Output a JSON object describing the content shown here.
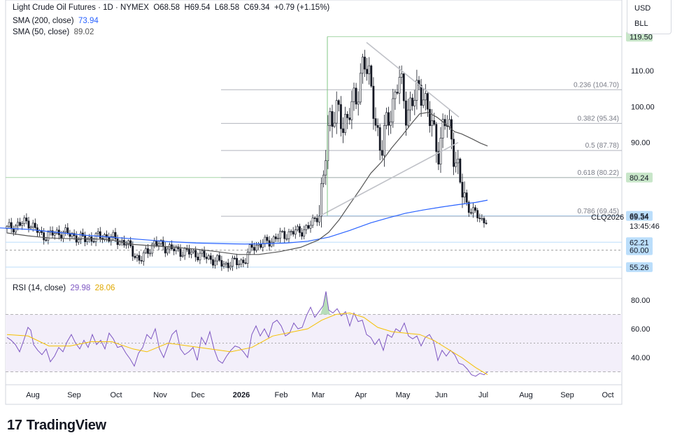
{
  "header": {
    "symbol": "Light Crude Oil Futures · 1D · NYMEX",
    "open": "O68.58",
    "high": "H69.54",
    "low": "L68.58",
    "close": "C69.34",
    "change": "+0.79 (+1.15%)",
    "sma200_label": "SMA (200, close)",
    "sma200_value": "73.94",
    "sma50_label": "SMA (50, close)",
    "sma50_value": "89.02"
  },
  "unit_selector": {
    "currency": "USD",
    "unit": "BLL"
  },
  "brand": {
    "name": "TradingView"
  },
  "colors": {
    "sma200": "#2962ff",
    "sma50": "#555555",
    "rsi": "#7e57c2",
    "rsi_ma": "#f5c000",
    "green_line": "#a5d6a7",
    "candle": "#131722"
  },
  "chart_data": [
    {
      "type": "candlestick",
      "title": "Light Crude Oil Futures · 1D · NYMEX",
      "x_ticks": [
        "Aug",
        "Sep",
        "Oct",
        "Nov",
        "Dec",
        "2026",
        "Feb",
        "Mar",
        "Apr",
        "May",
        "Jun",
        "Jul",
        "Aug",
        "Sep",
        "Oct"
      ],
      "y_ticks": [
        "110.00",
        "100.00",
        "90.00"
      ],
      "ylim": [
        52,
        122
      ],
      "price_labels": [
        {
          "text": "119.50",
          "value": 119.5,
          "style": "green"
        },
        {
          "text": "80.24",
          "value": 80.24,
          "style": "green"
        },
        {
          "text": "69.54",
          "value": 69.54,
          "style": "blue"
        },
        {
          "text": "62.21",
          "value": 62.21,
          "style": "blue"
        },
        {
          "text": "60.00",
          "value": 60.0,
          "style": "blue"
        },
        {
          "text": "55.26",
          "value": 55.26,
          "style": "blue"
        }
      ],
      "current_price": {
        "symbol": "CLQ2026",
        "price": "69.34",
        "countdown": "13:45:46"
      },
      "fibonacci": [
        {
          "label": "0.236 (104.70)",
          "value": 104.7
        },
        {
          "label": "0.382 (95.34)",
          "value": 95.34
        },
        {
          "label": "0.5 (87.78)",
          "value": 87.78
        },
        {
          "label": "0.618 (80.22)",
          "value": 80.22
        },
        {
          "label": "0.786 (69.45)",
          "value": 69.45
        }
      ],
      "series": [
        {
          "name": "SMA (200, close)",
          "points": [
            [
              0,
              66.2
            ],
            [
              40,
              65.8
            ],
            [
              80,
              65.0
            ],
            [
              120,
              64.2
            ],
            [
              160,
              63.6
            ],
            [
              200,
              63.0
            ],
            [
              240,
              62.4
            ],
            [
              280,
              62.0
            ],
            [
              320,
              61.8
            ],
            [
              350,
              61.7
            ],
            [
              380,
              61.8
            ],
            [
              410,
              62.0
            ],
            [
              440,
              62.5
            ],
            [
              470,
              63.6
            ],
            [
              500,
              65.5
            ],
            [
              530,
              67.6
            ],
            [
              555,
              69.0
            ],
            [
              580,
              70.3
            ],
            [
              605,
              71.2
            ],
            [
              630,
              72.0
            ],
            [
              655,
              72.7
            ],
            [
              680,
              73.3
            ],
            [
              697,
              73.94
            ]
          ]
        },
        {
          "name": "SMA (50, close)",
          "points": [
            [
              10,
              64.8
            ],
            [
              40,
              64.0
            ],
            [
              70,
              63.4
            ],
            [
              100,
              63.2
            ],
            [
              130,
              63.2
            ],
            [
              160,
              62.8
            ],
            [
              190,
              61.6
            ],
            [
              220,
              61.2
            ],
            [
              250,
              60.8
            ],
            [
              280,
              60.3
            ],
            [
              310,
              59.6
            ],
            [
              340,
              58.8
            ],
            [
              370,
              58.8
            ],
            [
              400,
              59.6
            ],
            [
              430,
              60.8
            ],
            [
              455,
              62.8
            ],
            [
              470,
              65.0
            ],
            [
              485,
              68.5
            ],
            [
              500,
              72.8
            ],
            [
              515,
              77.0
            ],
            [
              530,
              81.4
            ],
            [
              545,
              84.5
            ],
            [
              560,
              88.5
            ],
            [
              575,
              92.0
            ],
            [
              590,
              95.7
            ],
            [
              600,
              98.0
            ],
            [
              612,
              98.4
            ],
            [
              625,
              97.0
            ],
            [
              638,
              95.0
            ],
            [
              650,
              93.0
            ],
            [
              660,
              92.4
            ],
            [
              675,
              91.0
            ],
            [
              687,
              89.8
            ],
            [
              697,
              89.02
            ]
          ]
        }
      ],
      "drawings": [
        {
          "type": "trendline",
          "from": [
            458,
            69.6
          ],
          "to": [
            655,
            90.0
          ]
        },
        {
          "type": "trendline",
          "from": [
            524,
            117.9
          ],
          "to": [
            656,
            97.1
          ]
        },
        {
          "type": "vertical",
          "x": 468,
          "from": 119.5,
          "to": 69.6
        }
      ]
    },
    {
      "type": "line",
      "title": "RSI (14, close)",
      "rsi_value": "29.98",
      "rsi_ma_value": "28.06",
      "y_ticks": [
        "80.00",
        "60.00",
        "40.00"
      ],
      "ylim": [
        20,
        88
      ],
      "bands": [
        70,
        50,
        30
      ],
      "series": [
        {
          "name": "RSI (14, close)",
          "points": [
            [
              10,
              54
            ],
            [
              16,
              52
            ],
            [
              22,
              49
            ],
            [
              28,
              44
            ],
            [
              34,
              52
            ],
            [
              40,
              61
            ],
            [
              44,
              59
            ],
            [
              48,
              49
            ],
            [
              54,
              45
            ],
            [
              60,
              42
            ],
            [
              66,
              46
            ],
            [
              72,
              37
            ],
            [
              78,
              41
            ],
            [
              84,
              47
            ],
            [
              90,
              44
            ],
            [
              96,
              51
            ],
            [
              102,
              56
            ],
            [
              108,
              50
            ],
            [
              114,
              46
            ],
            [
              120,
              52
            ],
            [
              126,
              47
            ],
            [
              132,
              56
            ],
            [
              138,
              49
            ],
            [
              144,
              52
            ],
            [
              150,
              46
            ],
            [
              156,
              57
            ],
            [
              162,
              53
            ],
            [
              168,
              47
            ],
            [
              174,
              48
            ],
            [
              180,
              43
            ],
            [
              186,
              39
            ],
            [
              192,
              34
            ],
            [
              198,
              43
            ],
            [
              204,
              47
            ],
            [
              210,
              56
            ],
            [
              216,
              53
            ],
            [
              222,
              60
            ],
            [
              228,
              46
            ],
            [
              234,
              40
            ],
            [
              240,
              48
            ],
            [
              246,
              56
            ],
            [
              252,
              59
            ],
            [
              258,
              46
            ],
            [
              264,
              42
            ],
            [
              270,
              44
            ],
            [
              276,
              47
            ],
            [
              282,
              38
            ],
            [
              288,
              54
            ],
            [
              294,
              49
            ],
            [
              300,
              58
            ],
            [
              306,
              46
            ],
            [
              312,
              38
            ],
            [
              318,
              36
            ],
            [
              324,
              41
            ],
            [
              330,
              45
            ],
            [
              336,
              48
            ],
            [
              342,
              47
            ],
            [
              348,
              44
            ],
            [
              354,
              40
            ],
            [
              360,
              56
            ],
            [
              366,
              62
            ],
            [
              372,
              55
            ],
            [
              378,
              60
            ],
            [
              384,
              54
            ],
            [
              390,
              64
            ],
            [
              396,
              66
            ],
            [
              402,
              62
            ],
            [
              408,
              55
            ],
            [
              414,
              57
            ],
            [
              420,
              64
            ],
            [
              426,
              60
            ],
            [
              432,
              61
            ],
            [
              438,
              69
            ],
            [
              444,
              75
            ],
            [
              450,
              68
            ],
            [
              456,
              72
            ],
            [
              462,
              76
            ],
            [
              466,
              86
            ],
            [
              470,
              73
            ],
            [
              476,
              71
            ],
            [
              482,
              74
            ],
            [
              488,
              69
            ],
            [
              494,
              72
            ],
            [
              500,
              62
            ],
            [
              506,
              71
            ],
            [
              512,
              65
            ],
            [
              518,
              66
            ],
            [
              524,
              56
            ],
            [
              530,
              54
            ],
            [
              536,
              49
            ],
            [
              542,
              53
            ],
            [
              548,
              45
            ],
            [
              554,
              56
            ],
            [
              560,
              54
            ],
            [
              566,
              60
            ],
            [
              572,
              58
            ],
            [
              578,
              64
            ],
            [
              584,
              55
            ],
            [
              590,
              53
            ],
            [
              596,
              55
            ],
            [
              602,
              48
            ],
            [
              608,
              54
            ],
            [
              614,
              56
            ],
            [
              620,
              51
            ],
            [
              626,
              38
            ],
            [
              632,
              45
            ],
            [
              638,
              41
            ],
            [
              644,
              45
            ],
            [
              650,
              42
            ],
            [
              656,
              36
            ],
            [
              662,
              35
            ],
            [
              668,
              32
            ],
            [
              674,
              28
            ],
            [
              680,
              27
            ],
            [
              686,
              29
            ],
            [
              692,
              28
            ],
            [
              697,
              29.98
            ]
          ]
        },
        {
          "name": "RSI MA",
          "points": [
            [
              10,
              56
            ],
            [
              40,
              55
            ],
            [
              70,
              48
            ],
            [
              100,
              48
            ],
            [
              130,
              51
            ],
            [
              160,
              51
            ],
            [
              190,
              46
            ],
            [
              210,
              44
            ],
            [
              240,
              50
            ],
            [
              270,
              48
            ],
            [
              300,
              46
            ],
            [
              330,
              44
            ],
            [
              360,
              47
            ],
            [
              390,
              55
            ],
            [
              420,
              58
            ],
            [
              440,
              60
            ],
            [
              460,
              66
            ],
            [
              480,
              70
            ],
            [
              500,
              71
            ],
            [
              520,
              68
            ],
            [
              540,
              61
            ],
            [
              560,
              58
            ],
            [
              580,
              57
            ],
            [
              600,
              56
            ],
            [
              620,
              52
            ],
            [
              640,
              46
            ],
            [
              660,
              40
            ],
            [
              680,
              33
            ],
            [
              697,
              28.06
            ]
          ]
        }
      ]
    }
  ]
}
